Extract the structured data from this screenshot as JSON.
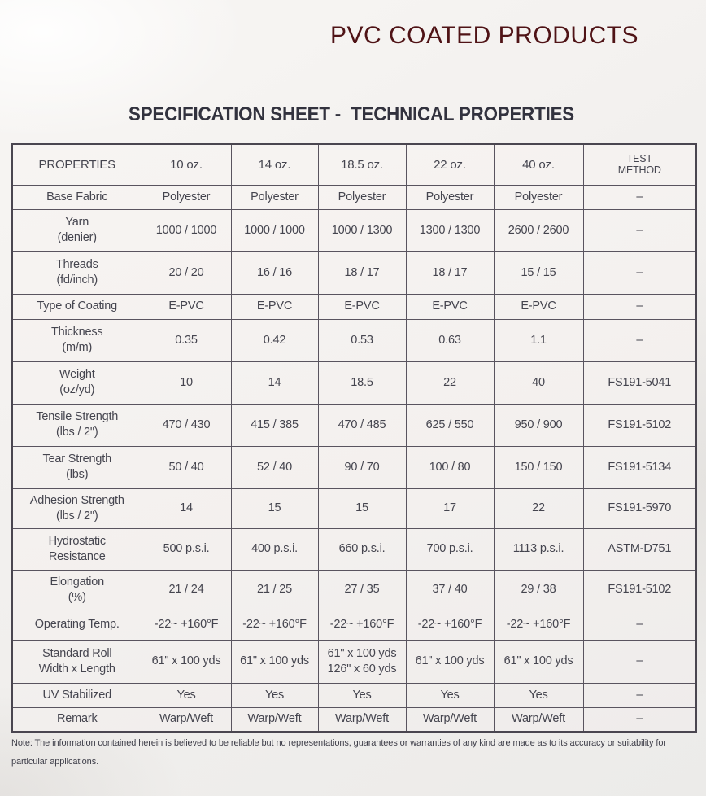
{
  "page": {
    "title": "PVC COATED PRODUCTS",
    "heading": "SPECIFICATION SHEET -  TECHNICAL PROPERTIES",
    "note": "Note: The information contained herein is believed to be reliable but no representations, guarantees or warranties of any kind are made as to its accuracy or suitability for\nparticular applications."
  },
  "colors": {
    "title_maroon": "#4f1316",
    "heading_dark": "#32323e",
    "table_line": "#59545f",
    "body_text": "#45454f"
  },
  "table": {
    "columns": [
      "PROPERTIES",
      "10 oz.",
      "14 oz.",
      "18.5 oz.",
      "22 oz.",
      "40 oz.",
      "TEST\nMETHOD"
    ],
    "rows": [
      {
        "label": "Base Fabric",
        "values": [
          "Polyester",
          "Polyester",
          "Polyester",
          "Polyester",
          "Polyester",
          "–"
        ]
      },
      {
        "label": "Yarn\n(denier)",
        "values": [
          "1000 / 1000",
          "1000 / 1000",
          "1000 / 1300",
          "1300 / 1300",
          "2600 / 2600",
          "–"
        ]
      },
      {
        "label": "Threads\n(fd/inch)",
        "values": [
          "20 / 20",
          "16 / 16",
          "18 / 17",
          "18 / 17",
          "15 / 15",
          "–"
        ]
      },
      {
        "label": "Type of Coating",
        "values": [
          "E-PVC",
          "E-PVC",
          "E-PVC",
          "E-PVC",
          "E-PVC",
          "–"
        ]
      },
      {
        "label": "Thickness\n(m/m)",
        "values": [
          "0.35",
          "0.42",
          "0.53",
          "0.63",
          "1.1",
          "–"
        ]
      },
      {
        "label": "Weight\n(oz/yd)",
        "values": [
          "10",
          "14",
          "18.5",
          "22",
          "40",
          "FS191-5041"
        ]
      },
      {
        "label": "Tensile Strength\n(lbs / 2\")",
        "values": [
          "470 / 430",
          "415 / 385",
          "470 / 485",
          "625 / 550",
          "950 / 900",
          "FS191-5102"
        ]
      },
      {
        "label": "Tear Strength\n(lbs)",
        "values": [
          "50 / 40",
          "52 / 40",
          "90 / 70",
          "100 / 80",
          "150 / 150",
          "FS191-5134"
        ]
      },
      {
        "label": "Adhesion Strength\n(lbs / 2\")",
        "values": [
          "14",
          "15",
          "15",
          "17",
          "22",
          "FS191-5970"
        ]
      },
      {
        "label": "Hydrostatic\nResistance",
        "values": [
          "500 p.s.i.",
          "400 p.s.i.",
          "660 p.s.i.",
          "700 p.s.i.",
          "1113 p.s.i.",
          "ASTM-D751"
        ]
      },
      {
        "label": "Elongation\n(%)",
        "values": [
          "21 / 24",
          "21 / 25",
          "27 / 35",
          "37 / 40",
          "29 / 38",
          "FS191-5102"
        ]
      },
      {
        "label": "Operating Temp.",
        "values": [
          "-22~ +160°F",
          "-22~ +160°F",
          "-22~ +160°F",
          "-22~ +160°F",
          "-22~ +160°F",
          "–"
        ]
      },
      {
        "label": "Standard Roll\nWidth x Length",
        "values": [
          "61\" x 100 yds",
          "61\" x 100 yds",
          "61\" x 100 yds\n126\" x 60 yds",
          "61\" x 100 yds",
          "61\" x 100 yds",
          "–"
        ]
      },
      {
        "label": "UV Stabilized",
        "values": [
          "Yes",
          "Yes",
          "Yes",
          "Yes",
          "Yes",
          "–"
        ]
      },
      {
        "label": "Remark",
        "values": [
          "Warp/Weft",
          "Warp/Weft",
          "Warp/Weft",
          "Warp/Weft",
          "Warp/Weft",
          "–"
        ]
      }
    ]
  }
}
